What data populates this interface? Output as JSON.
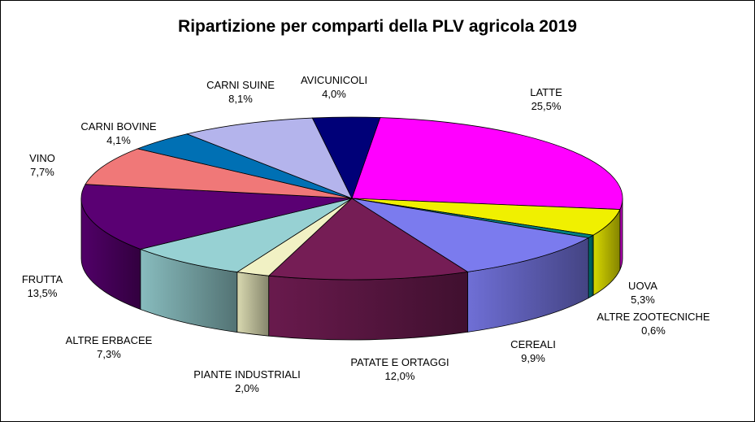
{
  "chart_data": {
    "type": "pie",
    "title": "Ripartizione per comparti della PLV agricola 2019",
    "slices": [
      {
        "label": "LATTE",
        "value": 25.5,
        "value_label": "25,5%",
        "color": "#ff00ff"
      },
      {
        "label": "UOVA",
        "value": 5.3,
        "value_label": "5,3%",
        "color": "#f0f000"
      },
      {
        "label": "ALTRE ZOOTECNICHE",
        "value": 0.6,
        "value_label": "0,6%",
        "color": "#008080"
      },
      {
        "label": "CEREALI",
        "value": 9.9,
        "value_label": "9,9%",
        "color": "#7b7bee"
      },
      {
        "label": "PATATE E ORTAGGI",
        "value": 12.0,
        "value_label": "12,0%",
        "color": "#751d55"
      },
      {
        "label": "PIANTE INDUSTRIALI",
        "value": 2.0,
        "value_label": "2,0%",
        "color": "#f1f1c4"
      },
      {
        "label": "ALTRE ERBACEE",
        "value": 7.3,
        "value_label": "7,3%",
        "color": "#97d1d3"
      },
      {
        "label": "FRUTTA",
        "value": 13.5,
        "value_label": "13,5%",
        "color": "#5a0073"
      },
      {
        "label": "VINO",
        "value": 7.7,
        "value_label": "7,7%",
        "color": "#f07878"
      },
      {
        "label": "CARNI BOVINE",
        "value": 4.1,
        "value_label": "4,1%",
        "color": "#0070b4"
      },
      {
        "label": "CARNI SUINE",
        "value": 8.1,
        "value_label": "8,1%",
        "color": "#b4b4ec"
      },
      {
        "label": "AVICUNICOLI",
        "value": 4.0,
        "value_label": "4,0%",
        "color": "#000078"
      }
    ]
  }
}
